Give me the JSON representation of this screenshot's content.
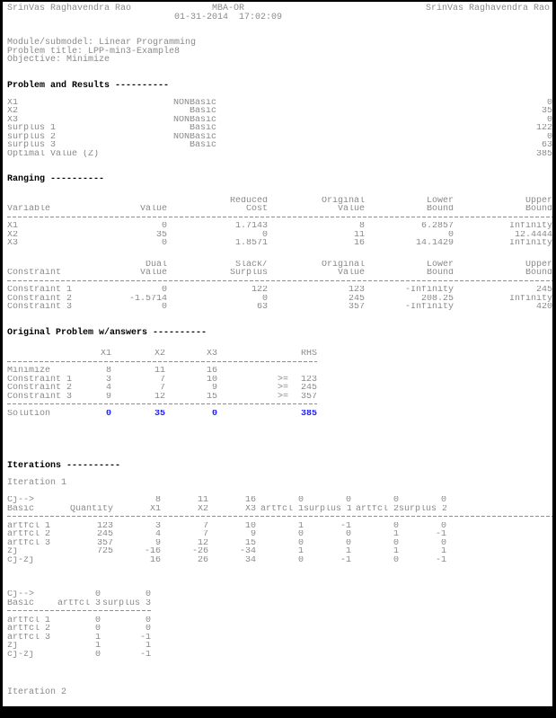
{
  "colors": {
    "body_text": "#8a8a8a",
    "heading_text": "#000000",
    "solution_value": "#2222ff",
    "frame": "#000000",
    "page_background": "#ffffff"
  },
  "header": {
    "left": "SrinVas Raghavendra Rao",
    "center": "MBA-OR",
    "right": "SrinVas Raghavendra Rao",
    "datetime": "01-31-2014  17:02:09"
  },
  "meta": {
    "module_line": "Module/submodel: Linear Programming",
    "title_line": "Problem title: LPP-min3-Example8",
    "objective_line": "Objective: Minimize"
  },
  "results": {
    "heading": "Problem and Results ----------",
    "rows": [
      [
        "X1",
        "NONBasic",
        "0"
      ],
      [
        "X2",
        "Basic",
        "35"
      ],
      [
        "X3",
        "NONBasic",
        "0"
      ],
      [
        "surplus 1",
        "Basic",
        "122"
      ],
      [
        "surplus 2",
        "NONBasic",
        "0"
      ],
      [
        "surplus 3",
        "Basic",
        "63"
      ],
      [
        "Optimal Value (Z)",
        "",
        "385"
      ]
    ]
  },
  "ranging": {
    "heading": "Ranging ----------",
    "variables": {
      "head": [
        [
          "",
          "",
          "Reduced",
          "Original",
          "Lower",
          "Upper"
        ],
        [
          "Variable",
          "Value",
          "Cost",
          "Value",
          "Bound",
          "Bound"
        ]
      ],
      "rows": [
        [
          "X1",
          "0",
          "1.7143",
          "8",
          "6.2857",
          "Infinity"
        ],
        [
          "X2",
          "35",
          "0",
          "11",
          "0",
          "12.4444"
        ],
        [
          "X3",
          "0",
          "1.8571",
          "16",
          "14.1429",
          "Infinity"
        ]
      ]
    },
    "constraints": {
      "head": [
        [
          "",
          "Dual",
          "Slack/",
          "Original",
          "Lower",
          "Upper"
        ],
        [
          "Constraint",
          "Value",
          "Surplus",
          "Value",
          "Bound",
          "Bound"
        ]
      ],
      "rows": [
        [
          "Constraint 1",
          "0",
          "122",
          "123",
          "-Infinity",
          "245"
        ],
        [
          "Constraint 2",
          "-1.5714",
          "0",
          "245",
          "208.25",
          "Infinity"
        ],
        [
          "Constraint 3",
          "0",
          "63",
          "357",
          "-Infinity",
          "420"
        ]
      ]
    }
  },
  "original": {
    "heading": "Original Problem w/answers ----------",
    "head": [
      [
        "",
        "X1",
        "X2",
        "X3",
        "",
        "RHS"
      ]
    ],
    "rows": [
      [
        "Minimize",
        "8",
        "11",
        "16",
        "",
        ""
      ],
      [
        "Constraint 1",
        "3",
        "7",
        "10",
        ">=",
        "123"
      ],
      [
        "Constraint 2",
        "4",
        "7",
        "9",
        ">=",
        "245"
      ],
      [
        "Constraint 3",
        "9",
        "12",
        "15",
        ">=",
        "357"
      ]
    ],
    "solution": [
      "Solution",
      "0",
      "35",
      "0",
      "",
      "385"
    ]
  },
  "iterations": {
    "heading": "Iterations ----------",
    "iteration1_label": "Iteration 1",
    "iteration2_label": "Iteration 2",
    "table1": {
      "head": [
        [
          "Cj-->",
          "",
          "8",
          "11",
          "16",
          "0",
          "0",
          "0",
          "0"
        ],
        [
          "Basic",
          "Quantity",
          "X1",
          "X2",
          "X3",
          "artfcl 1",
          "surplus 1",
          "artfcl 2",
          "surplus 2"
        ]
      ],
      "rows": [
        [
          "artfcl 1",
          "123",
          "3",
          "7",
          "10",
          "1",
          "-1",
          "0",
          "0"
        ],
        [
          "artfcl 2",
          "245",
          "4",
          "7",
          "9",
          "0",
          "0",
          "1",
          "-1"
        ],
        [
          "artfcl 3",
          "357",
          "9",
          "12",
          "15",
          "0",
          "0",
          "0",
          "0"
        ],
        [
          "zj",
          "725",
          "-16",
          "-26",
          "-34",
          "1",
          "1",
          "1",
          "1"
        ],
        [
          "cj-zj",
          "",
          "16",
          "26",
          "34",
          "0",
          "-1",
          "0",
          "-1"
        ]
      ]
    },
    "table2": {
      "head": [
        [
          "Cj-->",
          "0",
          "0"
        ],
        [
          "Basic",
          "artfcl 3",
          "surplus 3"
        ]
      ],
      "rows": [
        [
          "artfcl 1",
          "0",
          "0"
        ],
        [
          "artfcl 2",
          "0",
          "0"
        ],
        [
          "artfcl 3",
          "1",
          "-1"
        ],
        [
          "zj",
          "1",
          "1"
        ],
        [
          "cj-zj",
          "0",
          "-1"
        ]
      ]
    }
  }
}
